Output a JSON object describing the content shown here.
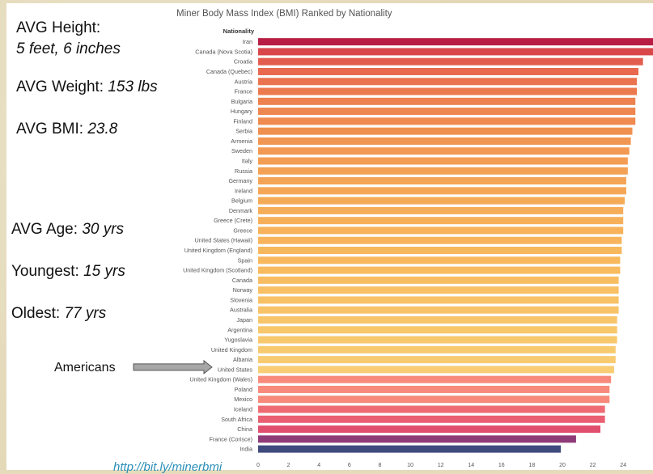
{
  "stats": {
    "height_label": "AVG Height:",
    "height_value": "5 feet, 6 inches",
    "weight_label": "AVG Weight: ",
    "weight_value": "153 lbs",
    "bmi_label": "AVG BMI: ",
    "bmi_value": "23.8",
    "age_label": "AVG Age: ",
    "age_value": "30 yrs",
    "youngest_label": "Youngest: ",
    "youngest_value": "15 yrs",
    "oldest_label": "Oldest: ",
    "oldest_value": "77 yrs"
  },
  "annotation": {
    "label": "Americans",
    "target": "United States"
  },
  "url_text": "http://bit.ly/minerbmi",
  "chart_data": {
    "type": "bar",
    "orientation": "horizontal",
    "title": "Miner Body Mass Index (BMI) Ranked by Nationality",
    "field_label": "Nationality",
    "xlim": [
      0,
      26
    ],
    "x_ticks": [
      0,
      2,
      4,
      6,
      8,
      10,
      12,
      14,
      16,
      18,
      20,
      22,
      24,
      26
    ],
    "categories": [
      "Iran",
      "Canada (Nova Scotia)",
      "Croatia",
      "Canada (Quebec)",
      "Austria",
      "France",
      "Bulgaria",
      "Hungary",
      "Finland",
      "Serbia",
      "Armenia",
      "Sweden",
      "Italy",
      "Russia",
      "Germany",
      "Ireland",
      "Belgium",
      "Denmark",
      "Greece (Crete)",
      "Greece",
      "United States (Hawaii)",
      "United Kingdom (England)",
      "Spain",
      "United Kingdom (Scotland)",
      "Canada",
      "Norway",
      "Slovenia",
      "Australia",
      "Japan",
      "Argentina",
      "Yugoslavia",
      "United Kingdom",
      "Albania",
      "United States",
      "United Kingdom (Wales)",
      "Poland",
      "Mexico",
      "Iceland",
      "South Africa",
      "China",
      "France (Corisce)",
      "India"
    ],
    "values": [
      26.5,
      26.3,
      25.3,
      25.0,
      24.9,
      24.9,
      24.8,
      24.8,
      24.8,
      24.6,
      24.5,
      24.4,
      24.3,
      24.3,
      24.2,
      24.2,
      24.1,
      24.0,
      24.0,
      24.0,
      23.9,
      23.9,
      23.8,
      23.8,
      23.7,
      23.7,
      23.7,
      23.7,
      23.6,
      23.6,
      23.6,
      23.5,
      23.5,
      23.4,
      23.2,
      23.1,
      23.1,
      22.8,
      22.8,
      22.5,
      20.9,
      19.9
    ],
    "colors": [
      "#b81e44",
      "#d8474a",
      "#e35d4f",
      "#e8694f",
      "#ea744f",
      "#ec7a4f",
      "#ed814f",
      "#ee864f",
      "#ef8b50",
      "#f09050",
      "#f19552",
      "#f29953",
      "#f39d54",
      "#f3a155",
      "#f4a456",
      "#f5a757",
      "#f5aa58",
      "#f6ad59",
      "#f6b05a",
      "#f7b25b",
      "#f7b45c",
      "#f7b75d",
      "#f8b95e",
      "#f8bb60",
      "#f8bd62",
      "#f8bf64",
      "#f8c166",
      "#f8c368",
      "#f8c56a",
      "#f8c76c",
      "#f8c86e",
      "#f8ca70",
      "#f8cb72",
      "#f8cd74",
      "#f78a7a",
      "#f78a7a",
      "#f78a7a",
      "#ef6b74",
      "#ea5f72",
      "#e14f6e",
      "#8e3b78",
      "#3f4a7e"
    ]
  }
}
